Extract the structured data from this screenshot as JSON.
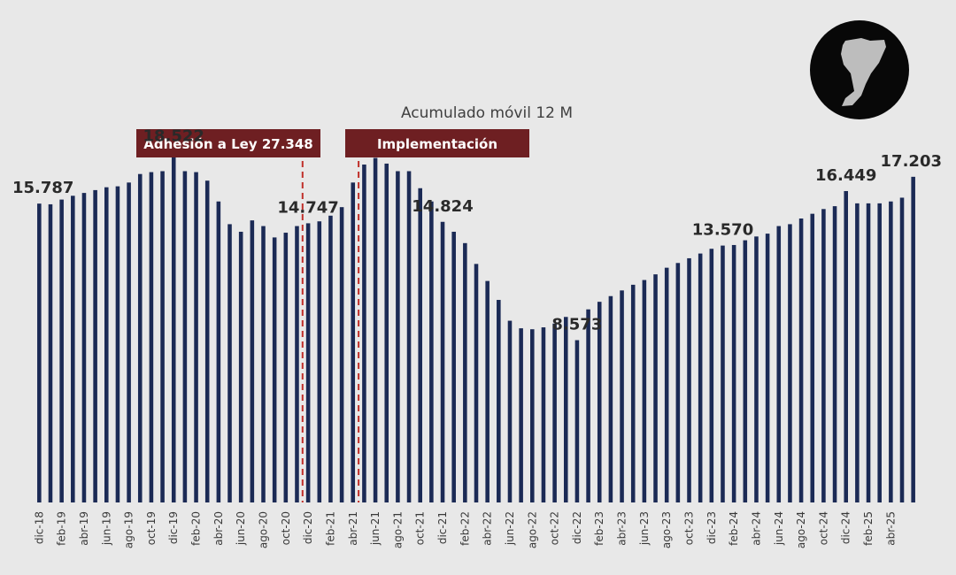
{
  "chart_data": {
    "type": "bar",
    "title": "Acumulado móvil 12 M",
    "xlabel": "",
    "ylabel": "",
    "ylim": [
      0,
      20000
    ],
    "grid": false,
    "bar_color": "#1b2a55",
    "annotation_color": "#6e1f22",
    "categories": [
      "dic-18",
      "ene-19",
      "feb-19",
      "mar-19",
      "abr-19",
      "may-19",
      "jun-19",
      "jul-19",
      "ago-19",
      "sep-19",
      "oct-19",
      "nov-19",
      "dic-19",
      "ene-20",
      "feb-20",
      "mar-20",
      "abr-20",
      "may-20",
      "jun-20",
      "jul-20",
      "ago-20",
      "sep-20",
      "oct-20",
      "nov-20",
      "dic-20",
      "ene-21",
      "feb-21",
      "mar-21",
      "abr-21",
      "may-21",
      "jun-21",
      "jul-21",
      "ago-21",
      "sep-21",
      "oct-21",
      "nov-21",
      "dic-21",
      "ene-22",
      "feb-22",
      "mar-22",
      "abr-22",
      "may-22",
      "jun-22",
      "jul-22",
      "ago-22",
      "sep-22",
      "oct-22",
      "nov-22",
      "dic-22",
      "ene-23",
      "feb-23",
      "mar-23",
      "abr-23",
      "may-23",
      "jun-23",
      "jul-23",
      "ago-23",
      "sep-23",
      "oct-23",
      "nov-23",
      "dic-23",
      "ene-24",
      "feb-24",
      "mar-24",
      "abr-24",
      "may-24",
      "jun-24",
      "jul-24",
      "ago-24",
      "sep-24",
      "oct-24",
      "nov-24",
      "dic-24",
      "ene-25",
      "feb-25",
      "mar-25",
      "abr-25",
      "may-25",
      "jun-25"
    ],
    "tick_labels": [
      "dic-18",
      "feb-19",
      "abr-19",
      "jun-19",
      "ago-19",
      "oct-19",
      "dic-19",
      "feb-20",
      "abr-20",
      "jun-20",
      "ago-20",
      "oct-20",
      "dic-20",
      "feb-21",
      "abr-21",
      "jun-21",
      "ago-21",
      "oct-21",
      "dic-21",
      "feb-22",
      "abr-22",
      "jun-22",
      "ago-22",
      "oct-22",
      "dic-22",
      "feb-23",
      "abr-23",
      "jun-23",
      "ago-23",
      "oct-23",
      "dic-23",
      "feb-24",
      "abr-24",
      "jun-24",
      "ago-24",
      "oct-24",
      "dic-24",
      "feb-25",
      "abr-25"
    ],
    "values": [
      15787,
      15750,
      16000,
      16200,
      16350,
      16500,
      16650,
      16700,
      16900,
      17350,
      17450,
      17500,
      18522,
      17500,
      17450,
      17000,
      15900,
      14700,
      14300,
      14900,
      14600,
      14000,
      14250,
      14600,
      14747,
      14850,
      15150,
      15600,
      16900,
      17850,
      18200,
      17900,
      17500,
      17500,
      16600,
      15900,
      14824,
      14300,
      13700,
      12600,
      11700,
      10700,
      9600,
      9200,
      9150,
      9250,
      9450,
      9800,
      8573,
      10200,
      10600,
      10900,
      11200,
      11500,
      11750,
      12050,
      12400,
      12650,
      12900,
      13150,
      13400,
      13570,
      13600,
      13850,
      14050,
      14200,
      14600,
      14700,
      15000,
      15250,
      15500,
      15650,
      16449,
      15800,
      15800,
      15800,
      15900,
      16100,
      17203
    ],
    "data_labels": [
      {
        "label": "15.787",
        "index": 0
      },
      {
        "label": "18.522",
        "index": 12
      },
      {
        "label": "14.747",
        "index": 24
      },
      {
        "label": "14.824",
        "index": 36
      },
      {
        "label": "8.573",
        "index": 48
      },
      {
        "label": "13.570",
        "index": 61
      },
      {
        "label": "16.449",
        "index": 72
      },
      {
        "label": "17.203",
        "index": 78
      }
    ],
    "annotations": [
      {
        "label": "Adhesión a Ley 27.348",
        "marker_between": [
          "nov-20",
          "dic-20"
        ]
      },
      {
        "label": "Implementación",
        "marker_between": [
          "abr-21",
          "may-21"
        ]
      }
    ]
  }
}
